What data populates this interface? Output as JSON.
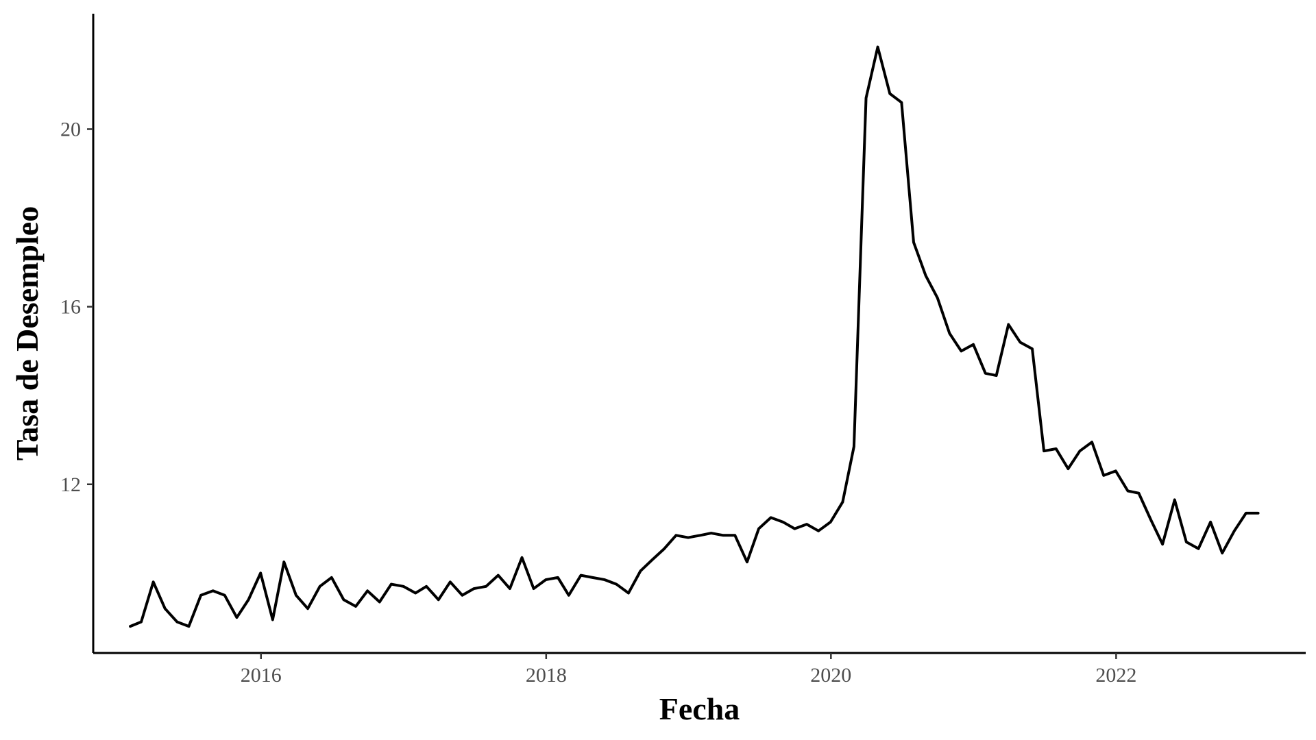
{
  "chart_data": {
    "type": "line",
    "title": "",
    "xlabel": "Fecha",
    "ylabel": "Tasa de Desempleo",
    "x_tick_labels": [
      "2016",
      "2018",
      "2020",
      "2022"
    ],
    "y_tick_labels": [
      "12",
      "16",
      "20"
    ],
    "x_ticks": [
      "2016-01-01",
      "2018-01-01",
      "2020-01-01",
      "2022-01-01"
    ],
    "y_ticks": [
      12,
      16,
      20
    ],
    "xlim": [
      "2014-10-28",
      "2023-05-02"
    ],
    "ylim": [
      8.2,
      22.6
    ],
    "grid": false,
    "legend": "none",
    "line_color": "#000000",
    "series": [
      {
        "x": [
          "2015-01-31",
          "2015-02-28",
          "2015-03-31",
          "2015-04-30",
          "2015-05-31",
          "2015-06-30",
          "2015-07-31",
          "2015-08-31",
          "2015-09-30",
          "2015-10-31",
          "2015-11-30",
          "2015-12-31",
          "2016-01-31",
          "2016-02-29",
          "2016-03-31",
          "2016-04-30",
          "2016-05-31",
          "2016-06-30",
          "2016-07-31",
          "2016-08-31",
          "2016-09-30",
          "2016-10-31",
          "2016-11-30",
          "2016-12-31",
          "2017-01-31",
          "2017-02-28",
          "2017-03-31",
          "2017-04-30",
          "2017-05-31",
          "2017-06-30",
          "2017-07-31",
          "2017-08-31",
          "2017-09-30",
          "2017-10-31",
          "2017-11-30",
          "2017-12-31",
          "2018-01-31",
          "2018-02-28",
          "2018-03-31",
          "2018-04-30",
          "2018-05-31",
          "2018-06-30",
          "2018-07-31",
          "2018-08-31",
          "2018-09-30",
          "2018-10-31",
          "2018-11-30",
          "2018-12-31",
          "2019-01-31",
          "2019-02-28",
          "2019-03-31",
          "2019-04-30",
          "2019-05-31",
          "2019-06-30",
          "2019-07-31",
          "2019-08-31",
          "2019-09-30",
          "2019-10-31",
          "2019-11-30",
          "2019-12-31",
          "2020-01-31",
          "2020-02-29",
          "2020-03-31",
          "2020-04-30",
          "2020-05-31",
          "2020-06-30",
          "2020-07-31",
          "2020-08-31",
          "2020-09-30",
          "2020-10-31",
          "2020-11-30",
          "2020-12-31",
          "2021-01-31",
          "2021-02-28",
          "2021-03-31",
          "2021-04-30",
          "2021-05-31",
          "2021-06-30",
          "2021-07-31",
          "2021-08-31",
          "2021-09-30",
          "2021-10-31",
          "2021-11-30",
          "2021-12-31",
          "2022-01-31",
          "2022-02-28",
          "2022-03-31",
          "2022-04-30",
          "2022-05-31",
          "2022-06-30",
          "2022-07-31",
          "2022-08-31",
          "2022-09-30",
          "2022-10-31",
          "2022-11-30",
          "2022-12-31"
        ],
        "values": [
          8.8,
          8.9,
          9.8,
          9.2,
          8.9,
          8.8,
          9.5,
          9.6,
          9.5,
          9.0,
          9.4,
          10.0,
          8.95,
          10.25,
          9.5,
          9.2,
          9.7,
          9.9,
          9.4,
          9.25,
          9.6,
          9.35,
          9.75,
          9.7,
          9.55,
          9.7,
          9.4,
          9.8,
          9.5,
          9.65,
          9.7,
          9.95,
          9.65,
          10.35,
          9.65,
          9.85,
          9.9,
          9.5,
          9.95,
          9.9,
          9.85,
          9.75,
          9.55,
          10.05,
          10.3,
          10.55,
          10.85,
          10.8,
          10.85,
          10.9,
          10.85,
          10.85,
          10.25,
          11.0,
          11.25,
          11.15,
          11.0,
          11.1,
          10.95,
          11.15,
          11.6,
          12.85,
          20.7,
          21.85,
          20.8,
          20.6,
          17.45,
          16.7,
          16.2,
          15.4,
          15.0,
          15.15,
          14.5,
          14.45,
          15.6,
          15.2,
          15.05,
          12.75,
          12.8,
          12.35,
          12.75,
          12.95,
          12.2,
          12.3,
          11.85,
          11.8,
          11.2,
          10.65,
          11.65,
          10.7,
          10.55,
          11.15,
          10.45,
          10.95,
          11.35,
          11.35
        ]
      }
    ]
  }
}
